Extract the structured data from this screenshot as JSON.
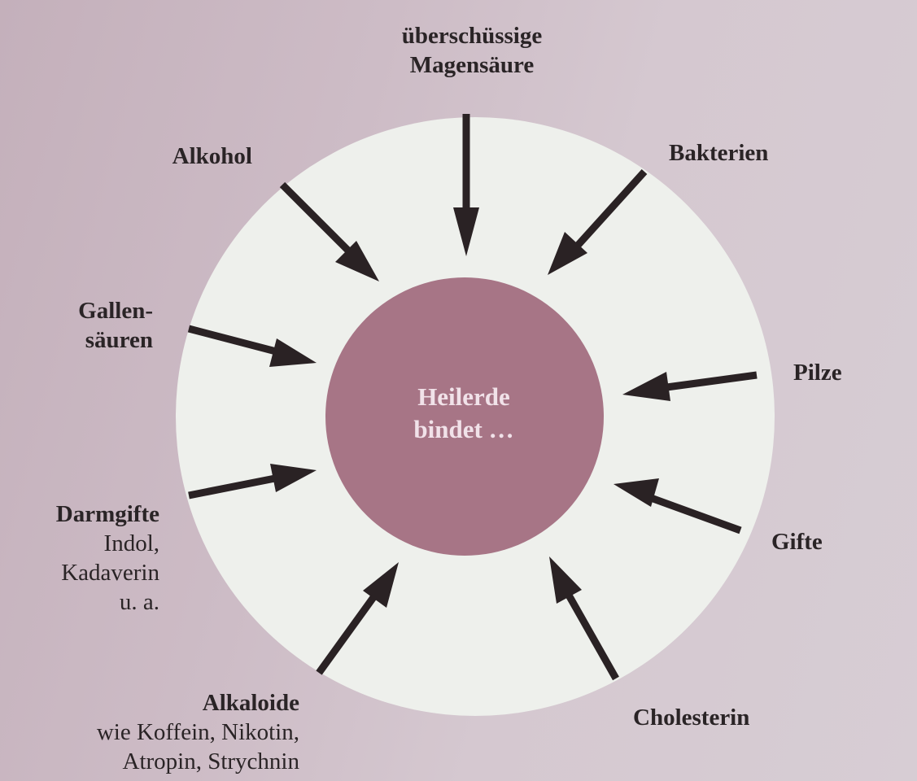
{
  "colors": {
    "outer_ring": "#eef0ec",
    "inner_circle": "#a77586",
    "arrow": "#2a2224",
    "center_text": "#f1e2e9"
  },
  "center": {
    "line1": "Heilerde",
    "line2": "bindet …"
  },
  "substances": {
    "magensaeure": {
      "line1": "überschüssige",
      "line2": "Magensäure"
    },
    "bakterien": {
      "line1": "Bakterien"
    },
    "alkohol": {
      "line1": "Alkohol"
    },
    "gallensaeuren": {
      "line1": "Gallen-",
      "line2": "säuren"
    },
    "pilze": {
      "line1": "Pilze"
    },
    "gifte": {
      "line1": "Gifte"
    },
    "darmgifte": {
      "line1": "Darmgifte",
      "line2": "Indol,",
      "line3": "Kadaverin",
      "line4": "u. a."
    },
    "alkaloide": {
      "line1": "Alkaloide",
      "line2": "wie Koffein, Nikotin,",
      "line3": "Atropin, Strychnin"
    },
    "cholesterin": {
      "line1": "Cholesterin"
    }
  }
}
